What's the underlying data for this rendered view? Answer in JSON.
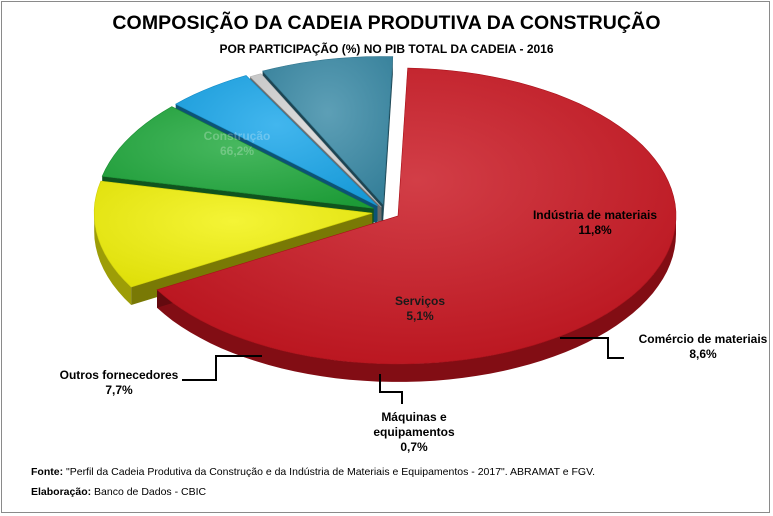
{
  "chart_data": {
    "type": "pie",
    "title": "COMPOSIÇÃO DA CADEIA PRODUTIVA DA CONSTRUÇÃO",
    "subtitle": "POR PARTICIPAÇÃO (%) NO PIB TOTAL DA CADEIA - 2016",
    "unit": "%",
    "categories": [
      "Construção",
      "Indústria de materiais",
      "Comércio de materiais",
      "Serviços",
      "Máquinas e equipamentos",
      "Outros fornecedores"
    ],
    "values": [
      66.2,
      11.8,
      8.6,
      5.1,
      0.7,
      7.7
    ],
    "value_labels": [
      "66,2%",
      "11,8%",
      "8,6%",
      "5,1%",
      "0,7%",
      "7,7%"
    ],
    "colors": [
      "#c8141e",
      "#f2f20a",
      "#1fa83c",
      "#19a6ea",
      "#d6d6d6",
      "#3a8aa6"
    ]
  },
  "footer": {
    "source_label": "Fonte:",
    "source_text": " \"Perfil da Cadeia Produtiva da Construção e da Indústria de Materiais e Equipamentos  - 2017\". ABRAMAT e FGV.",
    "credit_label": "Elaboração:",
    "credit_text": " Banco de Dados  - CBIC"
  }
}
